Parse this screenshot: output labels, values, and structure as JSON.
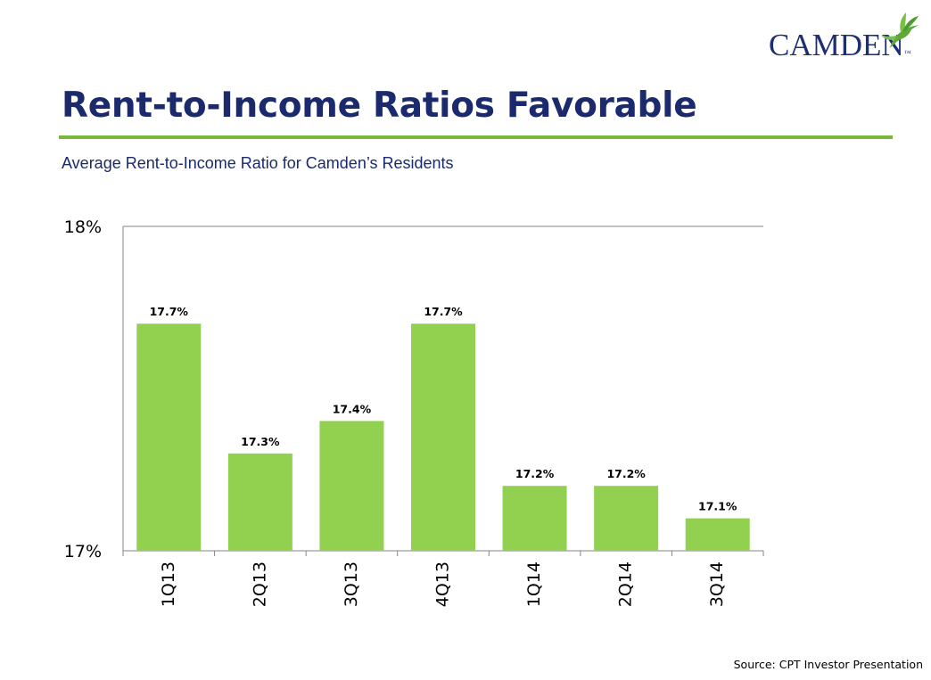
{
  "logo": {
    "text": "CAMDEN",
    "trademark": "™"
  },
  "header": {
    "title": "Rent-to-Income Ratios Favorable",
    "subtitle": "Average Rent-to-Income Ratio for Camden’s Residents"
  },
  "colors": {
    "bar": "#92d050",
    "title": "#1a2a6c",
    "rule": "#7ab53d",
    "logo_text": "#1d2f73",
    "logo_bird": "#5fa83a"
  },
  "chart_data": {
    "type": "bar",
    "categories": [
      "1Q13",
      "2Q13",
      "3Q13",
      "4Q13",
      "1Q14",
      "2Q14",
      "3Q14"
    ],
    "values": [
      17.7,
      17.3,
      17.4,
      17.7,
      17.2,
      17.2,
      17.1
    ],
    "data_labels": [
      "17.7%",
      "17.3%",
      "17.4%",
      "17.7%",
      "17.2%",
      "17.2%",
      "17.1%"
    ],
    "ylim": [
      17,
      18
    ],
    "y_ticks": [
      {
        "value": 18,
        "label": "18%"
      },
      {
        "value": 17,
        "label": "17%"
      }
    ],
    "title": "",
    "xlabel": "",
    "ylabel": "",
    "grid": false,
    "legend": "none"
  },
  "footer": {
    "source": "Source: CPT Investor Presentation"
  }
}
